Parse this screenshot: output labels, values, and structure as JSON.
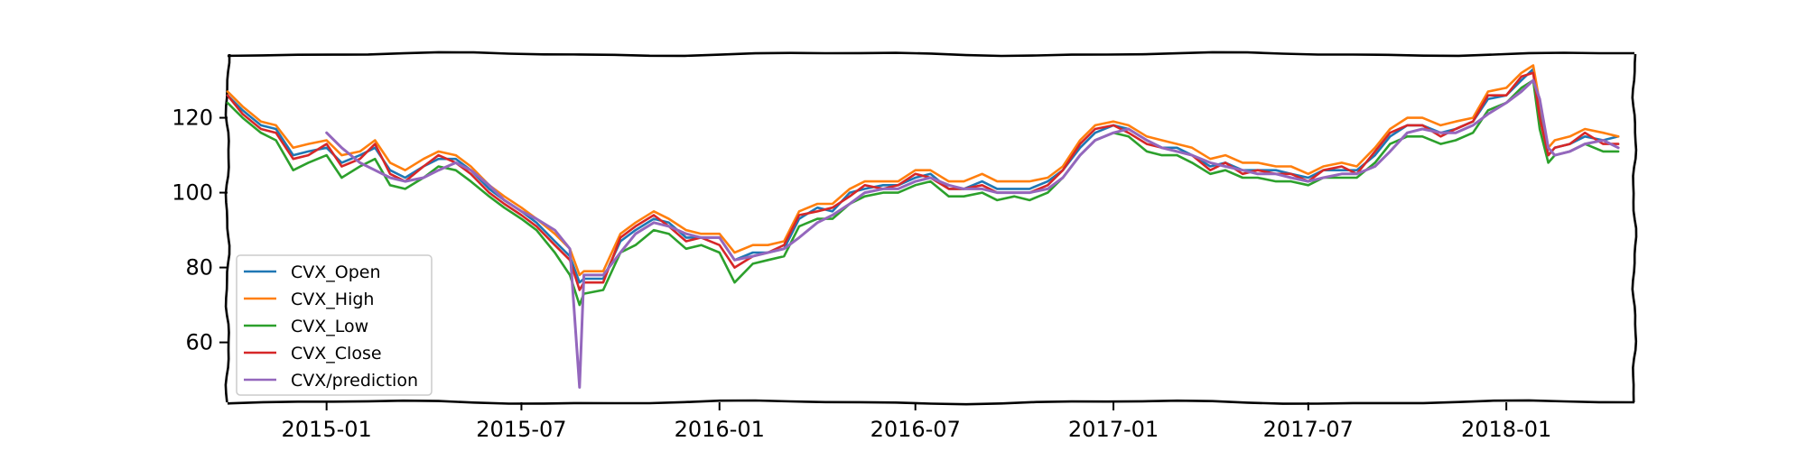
{
  "chart_data": {
    "type": "line",
    "title": "",
    "xlabel": "",
    "ylabel": "",
    "x_range": [
      "2014-10-01",
      "2018-04-30"
    ],
    "ylim": [
      44,
      137
    ],
    "grid": false,
    "legend_position": "lower-left",
    "x_ticks": [
      "2015-01",
      "2015-07",
      "2016-01",
      "2016-07",
      "2017-01",
      "2017-07",
      "2018-01"
    ],
    "y_ticks": [
      60,
      80,
      100,
      120
    ],
    "dates": [
      "2014-10-01",
      "2014-10-15",
      "2014-11-01",
      "2014-11-15",
      "2014-12-01",
      "2014-12-15",
      "2015-01-01",
      "2015-01-15",
      "2015-02-01",
      "2015-02-15",
      "2015-03-01",
      "2015-03-15",
      "2015-04-01",
      "2015-04-15",
      "2015-05-01",
      "2015-05-15",
      "2015-06-01",
      "2015-06-15",
      "2015-07-01",
      "2015-07-15",
      "2015-08-01",
      "2015-08-15",
      "2015-08-24",
      "2015-08-28",
      "2015-09-15",
      "2015-10-01",
      "2015-10-15",
      "2015-11-01",
      "2015-11-15",
      "2015-12-01",
      "2015-12-15",
      "2016-01-01",
      "2016-01-15",
      "2016-02-01",
      "2016-02-15",
      "2016-03-01",
      "2016-03-15",
      "2016-04-01",
      "2016-04-15",
      "2016-05-01",
      "2016-05-15",
      "2016-06-01",
      "2016-06-15",
      "2016-07-01",
      "2016-07-15",
      "2016-08-01",
      "2016-08-15",
      "2016-09-01",
      "2016-09-15",
      "2016-10-01",
      "2016-10-15",
      "2016-11-01",
      "2016-11-15",
      "2016-12-01",
      "2016-12-15",
      "2017-01-01",
      "2017-01-15",
      "2017-02-01",
      "2017-02-15",
      "2017-03-01",
      "2017-03-15",
      "2017-04-01",
      "2017-04-15",
      "2017-05-01",
      "2017-05-15",
      "2017-06-01",
      "2017-06-15",
      "2017-07-01",
      "2017-07-15",
      "2017-08-01",
      "2017-08-15",
      "2017-09-01",
      "2017-09-15",
      "2017-10-01",
      "2017-10-15",
      "2017-11-01",
      "2017-11-15",
      "2017-12-01",
      "2017-12-15",
      "2018-01-01",
      "2018-01-15",
      "2018-01-26",
      "2018-02-01",
      "2018-02-09",
      "2018-02-15",
      "2018-03-01",
      "2018-03-15",
      "2018-04-01",
      "2018-04-15"
    ],
    "series": [
      {
        "name": "CVX_Open",
        "color": "#1f77b4",
        "values": [
          126,
          122,
          118,
          117,
          110,
          111,
          112,
          108,
          110,
          112,
          106,
          104,
          107,
          109,
          109,
          106,
          101,
          98,
          95,
          92,
          87,
          83,
          76,
          77,
          77,
          87,
          90,
          93,
          92,
          88,
          88,
          88,
          82,
          84,
          84,
          85,
          93,
          96,
          95,
          100,
          101,
          102,
          102,
          104,
          105,
          101,
          101,
          103,
          101,
          101,
          101,
          103,
          106,
          112,
          116,
          118,
          117,
          114,
          112,
          112,
          110,
          107,
          108,
          106,
          106,
          106,
          105,
          104,
          106,
          106,
          106,
          110,
          115,
          118,
          118,
          116,
          117,
          119,
          125,
          126,
          130,
          133,
          122,
          110,
          112,
          113,
          115,
          114,
          115
        ]
      },
      {
        "name": "CVX_High",
        "color": "#ff7f0e",
        "values": [
          127,
          123,
          119,
          118,
          112,
          113,
          114,
          110,
          111,
          114,
          108,
          106,
          109,
          111,
          110,
          107,
          102,
          99,
          96,
          93,
          89,
          85,
          78,
          79,
          79,
          89,
          92,
          95,
          93,
          90,
          89,
          89,
          84,
          86,
          86,
          87,
          95,
          97,
          97,
          101,
          103,
          103,
          103,
          106,
          106,
          103,
          103,
          105,
          103,
          103,
          103,
          104,
          107,
          114,
          118,
          119,
          118,
          115,
          114,
          113,
          112,
          109,
          110,
          108,
          108,
          107,
          107,
          105,
          107,
          108,
          107,
          112,
          117,
          120,
          120,
          118,
          119,
          120,
          127,
          128,
          132,
          134,
          124,
          112,
          114,
          115,
          117,
          116,
          115
        ]
      },
      {
        "name": "CVX_Low",
        "color": "#2ca02c",
        "values": [
          124,
          120,
          116,
          114,
          106,
          108,
          110,
          104,
          107,
          109,
          102,
          101,
          104,
          107,
          106,
          103,
          99,
          96,
          93,
          90,
          84,
          78,
          70,
          73,
          74,
          84,
          86,
          90,
          89,
          85,
          86,
          84,
          76,
          81,
          82,
          83,
          91,
          93,
          93,
          97,
          99,
          100,
          100,
          102,
          103,
          99,
          99,
          100,
          98,
          99,
          98,
          100,
          104,
          110,
          114,
          116,
          115,
          111,
          110,
          110,
          108,
          105,
          106,
          104,
          104,
          103,
          103,
          102,
          104,
          104,
          104,
          108,
          113,
          115,
          115,
          113,
          114,
          116,
          122,
          124,
          128,
          130,
          117,
          108,
          110,
          111,
          113,
          111,
          111
        ]
      },
      {
        "name": "CVX_Close",
        "color": "#d62728",
        "values": [
          126,
          121,
          117,
          116,
          109,
          110,
          113,
          107,
          109,
          113,
          105,
          103,
          107,
          110,
          108,
          105,
          100,
          97,
          94,
          91,
          86,
          82,
          74,
          76,
          76,
          88,
          91,
          94,
          91,
          87,
          88,
          86,
          80,
          83,
          84,
          86,
          94,
          95,
          96,
          99,
          102,
          101,
          102,
          105,
          104,
          101,
          101,
          102,
          100,
          100,
          100,
          102,
          106,
          113,
          117,
          118,
          116,
          113,
          112,
          111,
          110,
          106,
          108,
          105,
          106,
          105,
          105,
          103,
          106,
          107,
          105,
          111,
          116,
          118,
          118,
          115,
          117,
          119,
          126,
          126,
          131,
          132,
          120,
          110,
          112,
          113,
          116,
          113,
          113
        ]
      },
      {
        "name": "CVX/prediction",
        "color": "#9467bd",
        "values": [
          null,
          null,
          null,
          null,
          null,
          null,
          116,
          112,
          108,
          106,
          104,
          103,
          104,
          106,
          108,
          106,
          102,
          98,
          95,
          93,
          90,
          85,
          48,
          78,
          78,
          84,
          89,
          92,
          91,
          89,
          88,
          88,
          82,
          83,
          84,
          85,
          88,
          92,
          94,
          97,
          100,
          101,
          101,
          103,
          104,
          102,
          101,
          101,
          100,
          100,
          100,
          101,
          104,
          110,
          114,
          116,
          117,
          114,
          112,
          111,
          110,
          108,
          107,
          106,
          105,
          105,
          104,
          103,
          104,
          105,
          105,
          107,
          111,
          116,
          117,
          116,
          116,
          118,
          121,
          124,
          127,
          130,
          125,
          112,
          110,
          111,
          113,
          114,
          112
        ]
      }
    ]
  }
}
